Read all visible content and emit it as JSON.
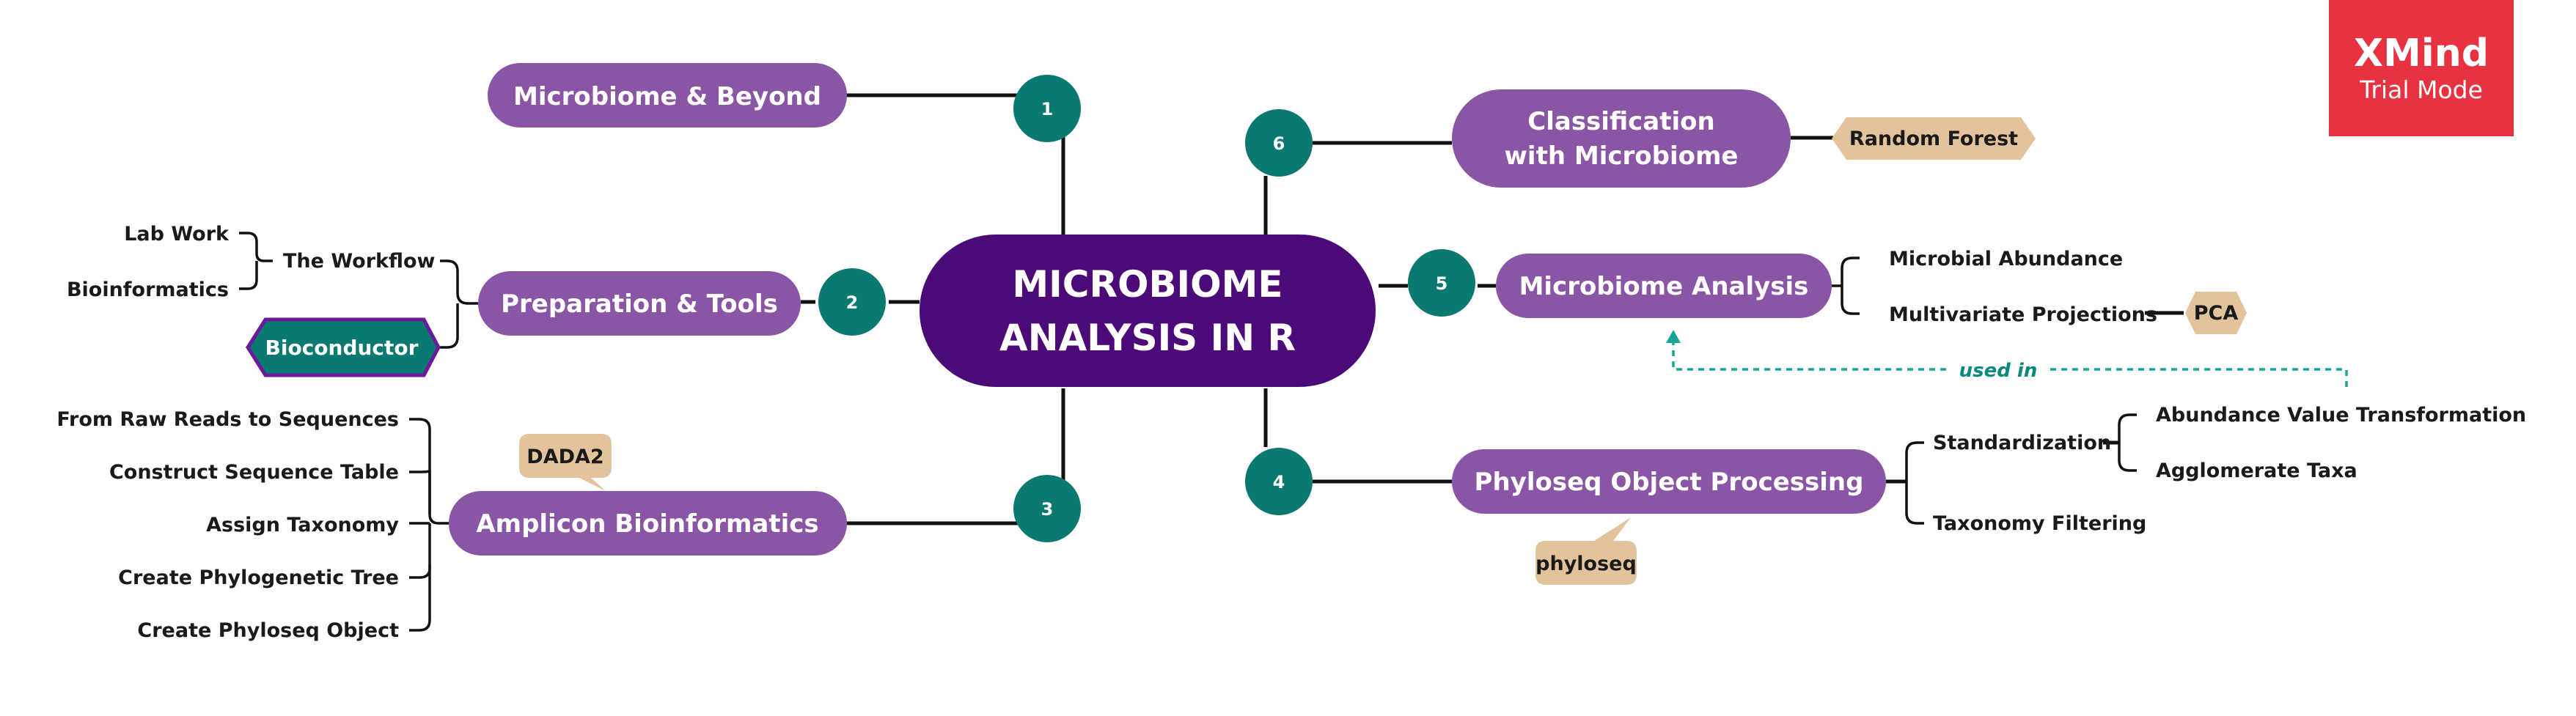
{
  "colors": {
    "central": "#4b0a78",
    "topic": "#8a55a5",
    "number": "#0a7a70",
    "tag": "#e2c39b",
    "bioconductor_fill": "#0a7a70",
    "bioconductor_border": "#6a1a9a",
    "relationship": "#17a596",
    "trial_badge": "#e8323f"
  },
  "central": {
    "line1": "MICROBIOME",
    "line2": "ANALYSIS IN R"
  },
  "topics": {
    "t1": {
      "number": "1",
      "label": "Microbiome & Beyond"
    },
    "t2": {
      "number": "2",
      "label": "Preparation & Tools"
    },
    "t3": {
      "number": "3",
      "label": "Amplicon Bioinformatics"
    },
    "t4": {
      "number": "4",
      "label": "Phyloseq Object Processing"
    },
    "t5": {
      "number": "5",
      "label": "Microbiome Analysis"
    },
    "t6": {
      "number": "6",
      "line1": "Classification",
      "line2": "with Microbiome"
    }
  },
  "subtopics": {
    "workflow": "The Workflow",
    "lab_work": "Lab Work",
    "bioinformatics": "Bioinformatics",
    "bioconductor": "Bioconductor",
    "raw_reads": "From Raw Reads to Sequences",
    "seq_table": "Construct Sequence Table",
    "assign_tax": "Assign Taxonomy",
    "phylo_tree": "Create Phylogenetic Tree",
    "phyloseq_obj": "Create Phyloseq Object",
    "standardization": "Standardization",
    "abundance_transform": "Abundance Value Transformation",
    "agglomerate": "Agglomerate Taxa",
    "tax_filter": "Taxonomy Filtering",
    "microbial_abundance": "Microbial Abundance",
    "multivariate": "Multivariate Projections"
  },
  "labels": {
    "dada2": "DADA2",
    "phyloseq": "phyloseq",
    "pca": "PCA",
    "random_forest": "Random Forest"
  },
  "relationship": {
    "label": "used in"
  },
  "trial": {
    "brand": "XMind",
    "mode": "Trial Mode"
  }
}
